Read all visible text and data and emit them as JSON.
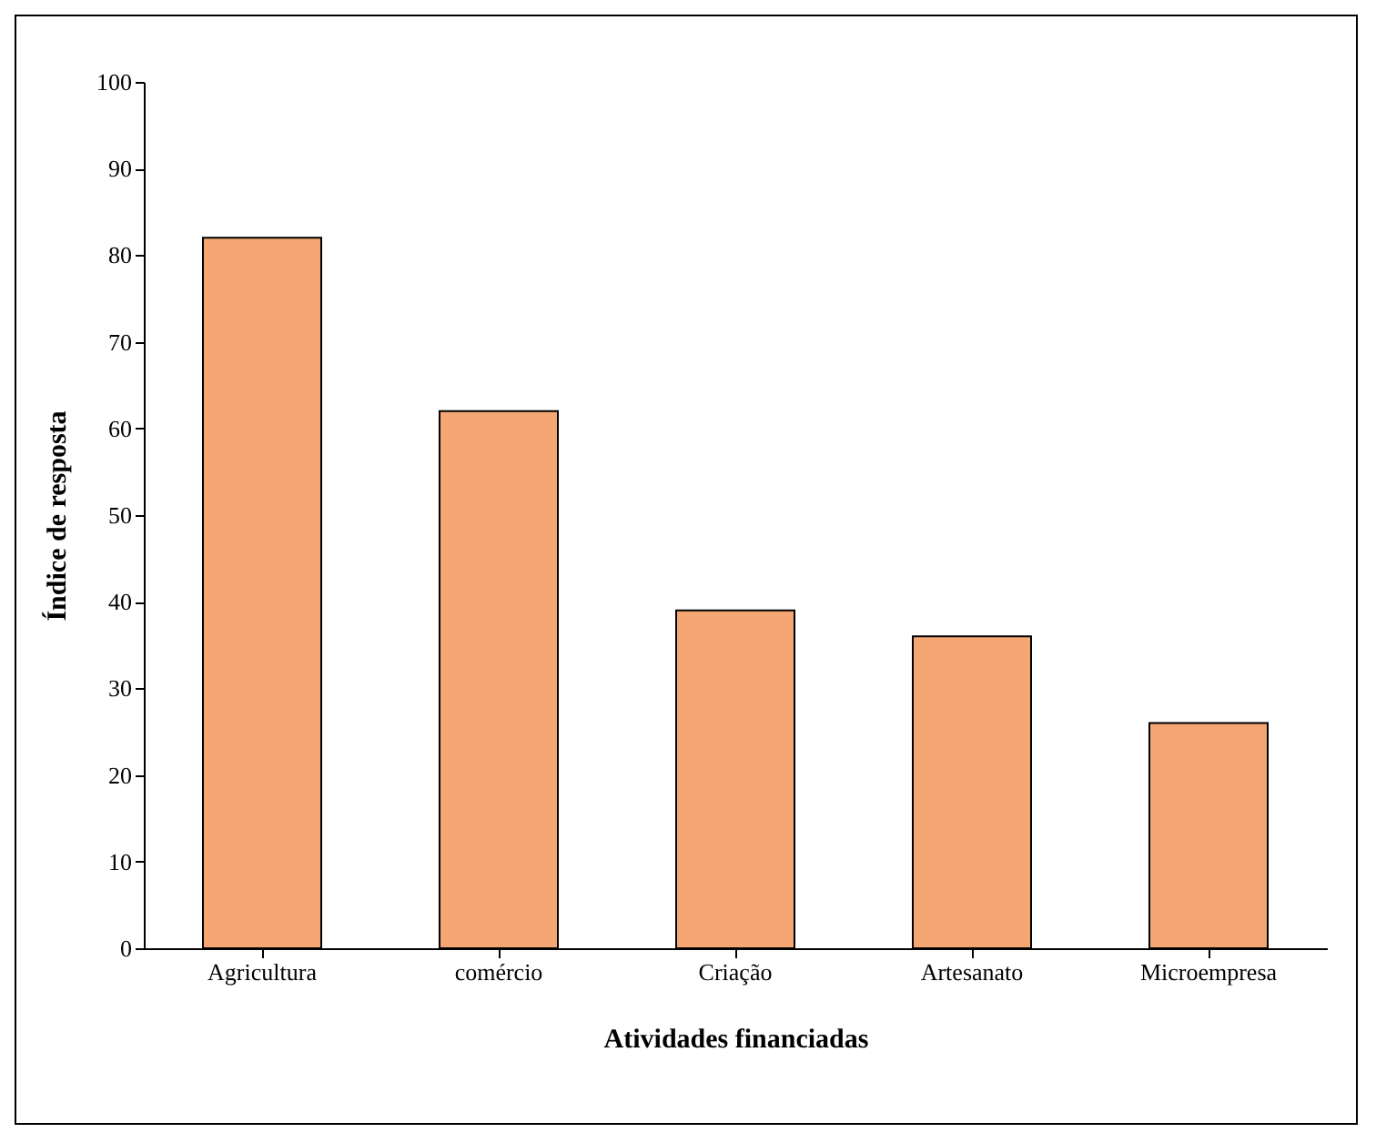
{
  "chart_data": {
    "type": "bar",
    "xlabel": "Atividades  financiadas",
    "ylabel": "Índice de resposta",
    "categories": [
      "Agricultura",
      "comércio",
      "Criação",
      "Artesanato",
      "Microempresa"
    ],
    "values": [
      82,
      62,
      39,
      36,
      26
    ],
    "color": "#f4a673",
    "ylim": [
      0,
      100
    ],
    "yticks": [
      0,
      10,
      20,
      30,
      40,
      50,
      60,
      70,
      80,
      90,
      100
    ]
  }
}
